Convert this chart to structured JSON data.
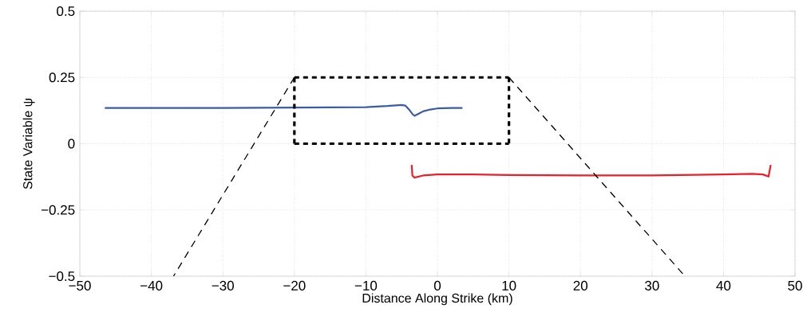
{
  "chart_data": {
    "type": "line",
    "xlabel": "Distance Along Strike (km)",
    "ylabel": "State Variable ψ",
    "xlim": [
      -50,
      50
    ],
    "ylim": [
      -0.5,
      0.5
    ],
    "xticks": [
      {
        "value": -50,
        "label": "−50"
      },
      {
        "value": -40,
        "label": "−40"
      },
      {
        "value": -30,
        "label": "−30"
      },
      {
        "value": -20,
        "label": "−20"
      },
      {
        "value": -10,
        "label": "−10"
      },
      0,
      10,
      20,
      30,
      40,
      50
    ],
    "yticks": [
      {
        "value": -0.5,
        "label": "−0.5"
      },
      {
        "value": -0.25,
        "label": "−0.25"
      },
      0,
      0.25,
      0.5
    ],
    "grid": true,
    "series": [
      {
        "color": "#3a5ba8",
        "line_style": "solid",
        "x": [
          -46.5,
          -40,
          -30,
          -20,
          -15,
          -10,
          -7,
          -5,
          -4.5,
          -4,
          -3.5,
          -3.2,
          -2.5,
          -2,
          -1,
          0,
          1,
          2,
          3.5
        ],
        "values": [
          0.135,
          0.135,
          0.135,
          0.136,
          0.137,
          0.138,
          0.142,
          0.146,
          0.144,
          0.13,
          0.112,
          0.105,
          0.115,
          0.122,
          0.129,
          0.133,
          0.134,
          0.135,
          0.135
        ]
      },
      {
        "color": "#e8202a",
        "line_style": "solid",
        "x": [
          -3.6,
          -3.5,
          -3.2,
          -2,
          0,
          5,
          10,
          20,
          30,
          40,
          44,
          45.5,
          46.3,
          46.6
        ],
        "values": [
          -0.08,
          -0.12,
          -0.128,
          -0.12,
          -0.116,
          -0.116,
          -0.118,
          -0.12,
          -0.12,
          -0.116,
          -0.114,
          -0.116,
          -0.124,
          -0.08
        ]
      },
      {
        "color": "#000000",
        "line_style": "dotted",
        "x": [
          -20,
          -20
        ],
        "values": [
          0,
          0.25
        ]
      },
      {
        "color": "#000000",
        "line_style": "dotted",
        "x": [
          -20,
          10
        ],
        "values": [
          0.25,
          0.25
        ]
      },
      {
        "color": "#000000",
        "line_style": "dotted",
        "x": [
          10,
          10
        ],
        "values": [
          0.25,
          0
        ]
      },
      {
        "color": "#000000",
        "line_style": "dotted",
        "x": [
          -20,
          10
        ],
        "values": [
          0,
          0
        ]
      },
      {
        "color": "#000000",
        "line_style": "dashed",
        "x": [
          -20,
          -36.9
        ],
        "values": [
          0.25,
          -0.5
        ]
      },
      {
        "color": "#000000",
        "line_style": "dashed",
        "x": [
          10,
          34.6
        ],
        "values": [
          0.25,
          -0.5
        ]
      }
    ]
  }
}
